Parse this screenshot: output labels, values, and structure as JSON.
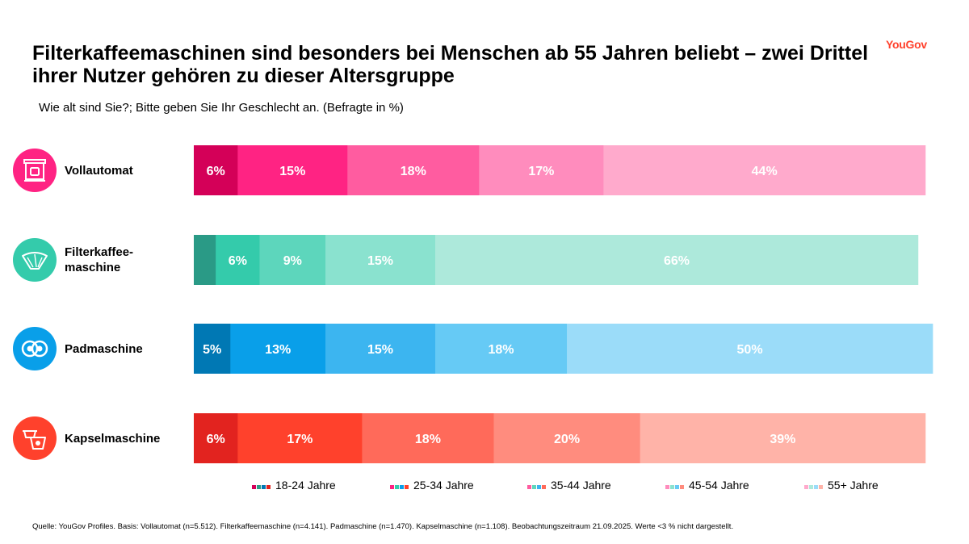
{
  "header": {
    "title": "Filterkaffeemaschinen sind besonders bei Menschen ab 55 Jahren beliebt – zwei Drittel ihrer Nutzer gehören zu dieser Altersgruppe",
    "subtitle": "Wie alt sind Sie?; Bitte geben Sie Ihr Geschlecht an. (Befragte in %)",
    "logo": "YouGov"
  },
  "source": "Quelle: YouGov Profiles. Basis: Vollautomat (n=5.512). Filterkaffeemaschine (n=4.141). Padmaschine (n=1.470). Kapselmaschine (n=1.108). Beobachtungszeitraum 21.09.2025. Werte <3 % nicht dargestellt.",
  "chart_data": {
    "type": "bar",
    "orientation": "horizontal",
    "stacked": true,
    "normalized": true,
    "categories": [
      "Vollautomat",
      "Filterkaffeemaschine",
      "Padmaschine",
      "Kapselmaschine"
    ],
    "category_label_lines": [
      [
        "Vollautomat"
      ],
      [
        "Filterkaffee-",
        "maschine"
      ],
      [
        "Padmaschine"
      ],
      [
        "Kapselmaschine"
      ]
    ],
    "category_icons": [
      "coffee-machine-icon",
      "coffee-filter-icon",
      "coffee-pad-icon",
      "coffee-capsule-icon"
    ],
    "series": [
      {
        "name": "18-24 Jahre",
        "values": [
          6,
          3,
          5,
          6
        ],
        "labels": [
          "6%",
          "",
          "5%",
          "6%"
        ]
      },
      {
        "name": "25-34 Jahre",
        "values": [
          15,
          6,
          13,
          17
        ],
        "labels": [
          "15%",
          "6%",
          "13%",
          "17%"
        ]
      },
      {
        "name": "35-44 Jahre",
        "values": [
          18,
          9,
          15,
          18
        ],
        "labels": [
          "18%",
          "9%",
          "15%",
          "18%"
        ]
      },
      {
        "name": "45-54 Jahre",
        "values": [
          17,
          15,
          18,
          20
        ],
        "labels": [
          "17%",
          "15%",
          "18%",
          "20%"
        ]
      },
      {
        "name": "55+ Jahre",
        "values": [
          44,
          66,
          50,
          39
        ],
        "labels": [
          "44%",
          "66%",
          "50%",
          "39%"
        ]
      }
    ],
    "colors": [
      [
        "#d40058",
        "#ff2383",
        "#ff5ca0",
        "#ff8cbd",
        "#ffaacc"
      ],
      [
        "#2a9a86",
        "#34cbab",
        "#5dd6bc",
        "#8ae2cf",
        "#ade9db"
      ],
      [
        "#0078b4",
        "#099fe9",
        "#3cb5f0",
        "#66caf5",
        "#9bdcf9"
      ],
      [
        "#e2231f",
        "#ff412c",
        "#ff6a5a",
        "#ff8c7e",
        "#ffb3a8"
      ]
    ],
    "icon_colors": [
      "#ff2383",
      "#34cbab",
      "#099fe9",
      "#ff412c"
    ],
    "legend_position": "bottom",
    "xlim": [
      0,
      100
    ],
    "grid": false,
    "value_unit": "%",
    "note": ""
  }
}
